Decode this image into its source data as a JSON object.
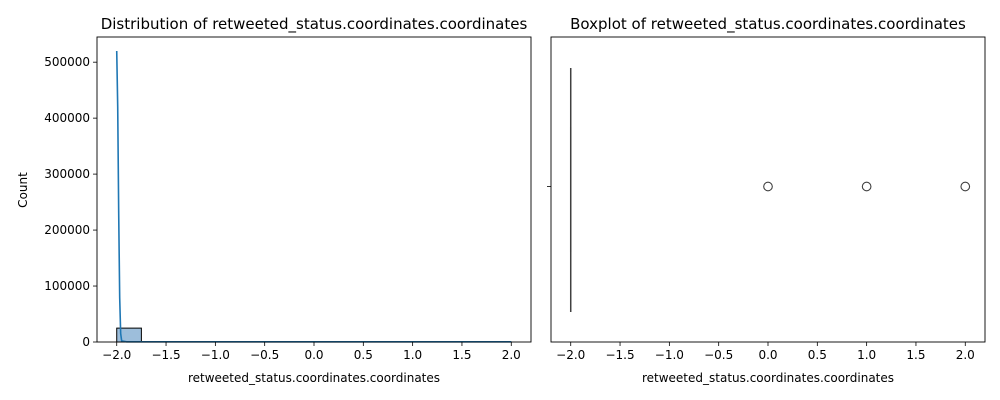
{
  "colors": {
    "hist_fill": "#9dbedb",
    "kde_line": "#1f77b4",
    "box_line": "#404040",
    "background": "#ffffff"
  },
  "chart_data": [
    {
      "type": "histogram",
      "title": "Distribution of retweeted_status.coordinates.coordinates",
      "xlabel": "retweeted_status.coordinates.coordinates",
      "ylabel": "Count",
      "xlim": [
        -2.2,
        2.2
      ],
      "ylim": [
        0,
        545000
      ],
      "xticks": [
        "−2.0",
        "−1.5",
        "−1.0",
        "−0.5",
        "0.0",
        "0.5",
        "1.0",
        "1.5",
        "2.0"
      ],
      "xtick_values": [
        -2.0,
        -1.5,
        -1.0,
        -0.5,
        0.0,
        0.5,
        1.0,
        1.5,
        2.0
      ],
      "yticks": [
        "0",
        "100000",
        "200000",
        "300000",
        "400000",
        "500000"
      ],
      "ytick_values": [
        0,
        100000,
        200000,
        300000,
        400000,
        500000
      ],
      "bins": [
        {
          "x0": -2.0,
          "x1": -1.75,
          "count": 24800
        },
        {
          "x0": -1.75,
          "x1": -1.5,
          "count": 0
        },
        {
          "x0": -1.5,
          "x1": -1.25,
          "count": 0
        },
        {
          "x0": -1.25,
          "x1": -1.0,
          "count": 0
        },
        {
          "x0": -1.0,
          "x1": -0.75,
          "count": 0
        },
        {
          "x0": -0.75,
          "x1": -0.5,
          "count": 0
        },
        {
          "x0": -0.5,
          "x1": -0.25,
          "count": 0
        },
        {
          "x0": -0.25,
          "x1": 0.0,
          "count": 0
        },
        {
          "x0": 0.0,
          "x1": 0.25,
          "count": 1
        },
        {
          "x0": 0.25,
          "x1": 0.5,
          "count": 0
        },
        {
          "x0": 0.5,
          "x1": 0.75,
          "count": 0
        },
        {
          "x0": 0.75,
          "x1": 1.0,
          "count": 0
        },
        {
          "x0": 1.0,
          "x1": 1.25,
          "count": 1
        },
        {
          "x0": 1.25,
          "x1": 1.5,
          "count": 0
        },
        {
          "x0": 1.5,
          "x1": 1.75,
          "count": 0
        },
        {
          "x0": 1.75,
          "x1": 2.0,
          "count": 1
        }
      ],
      "kde": {
        "x": [
          -2.0,
          -1.99,
          -1.98,
          -1.97,
          -1.96,
          -1.95,
          -1.9,
          -1.5,
          0.0,
          1.0,
          2.0
        ],
        "y": [
          520000,
          420000,
          230000,
          80000,
          15000,
          2000,
          300,
          250,
          250,
          250,
          250
        ]
      }
    },
    {
      "type": "boxplot",
      "title": "Boxplot of retweeted_status.coordinates.coordinates",
      "xlabel": "retweeted_status.coordinates.coordinates",
      "xlim": [
        -2.2,
        2.2
      ],
      "xticks": [
        "−2.0",
        "−1.5",
        "−1.0",
        "−0.5",
        "0.0",
        "0.5",
        "1.0",
        "1.5",
        "2.0"
      ],
      "xtick_values": [
        -2.0,
        -1.5,
        -1.0,
        -0.5,
        0.0,
        0.5,
        1.0,
        1.5,
        2.0
      ],
      "box": {
        "q1": -2.0,
        "median": -2.0,
        "q3": -2.0,
        "whisker_low": -2.0,
        "whisker_high": -2.0
      },
      "outliers": [
        0.0,
        1.0,
        2.0
      ]
    }
  ]
}
